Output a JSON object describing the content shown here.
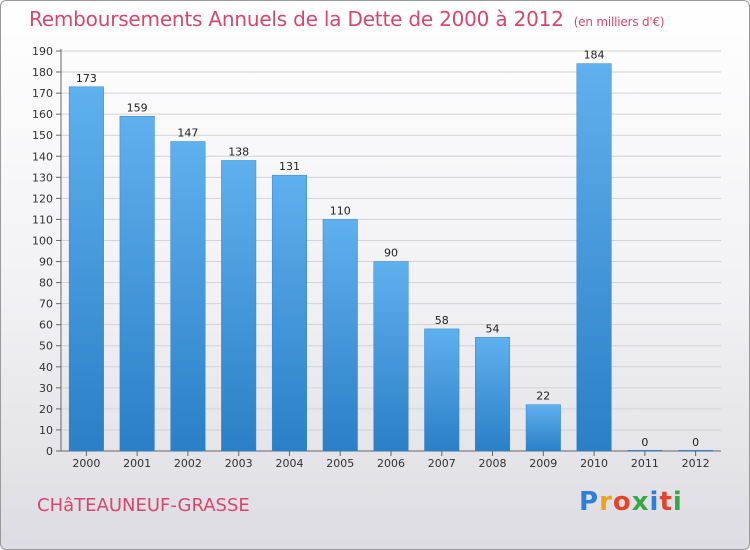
{
  "header": {
    "title": "Remboursements Annuels de la Dette de 2000 à 2012",
    "subtitle": "(en milliers d'€)"
  },
  "footer": {
    "city": "CHâTEAUNEUF-GRASSE",
    "logo": [
      "P",
      "r",
      "o",
      "x",
      "i",
      "t",
      "i"
    ],
    "logo_colors": [
      "#2e7fd8",
      "#f0a21a",
      "#e3452b",
      "#3aa64a",
      "#2e7fd8",
      "#e3452b",
      "#3aa64a"
    ]
  },
  "chart_data": {
    "type": "bar",
    "title": "Remboursements Annuels de la Dette de 2000 à 2012",
    "categories": [
      "2000",
      "2001",
      "2002",
      "2003",
      "2004",
      "2005",
      "2006",
      "2007",
      "2008",
      "2009",
      "2010",
      "2011",
      "2012"
    ],
    "values": [
      173,
      159,
      147,
      138,
      131,
      110,
      90,
      58,
      54,
      22,
      184,
      0,
      0
    ],
    "value_labels": [
      "173",
      "159",
      "147",
      "138",
      "131",
      "110",
      "90",
      "58",
      "54",
      "22",
      "184",
      "0",
      "0"
    ],
    "yticks": [
      "0",
      "10",
      "20",
      "30",
      "40",
      "50",
      "60",
      "70",
      "80",
      "90",
      "100",
      "110",
      "120",
      "130",
      "140",
      "150",
      "160",
      "170",
      "180",
      "190"
    ],
    "ylim": [
      0,
      190
    ],
    "grid": true,
    "bar_color": "#4a9de0"
  }
}
